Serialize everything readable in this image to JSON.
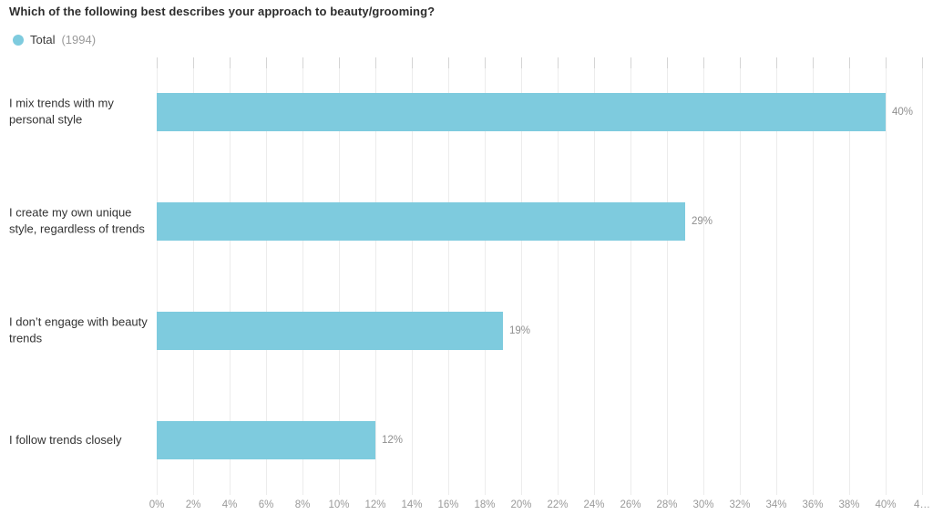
{
  "chart_data": {
    "type": "bar",
    "orientation": "horizontal",
    "title": "Which of the following best describes your approach to beauty/grooming?",
    "legend": {
      "label": "Total",
      "count": "(1994)"
    },
    "categories": [
      "I mix trends with my personal style",
      "I create my own unique style, regardless of trends",
      "I don’t engage with beauty trends",
      "I follow trends closely"
    ],
    "values": [
      40,
      29,
      19,
      12
    ],
    "value_labels": [
      "40%",
      "29%",
      "19%",
      "12%"
    ],
    "x_ticks": [
      "0%",
      "2%",
      "4%",
      "6%",
      "8%",
      "10%",
      "12%",
      "14%",
      "16%",
      "18%",
      "20%",
      "22%",
      "24%",
      "26%",
      "28%",
      "30%",
      "32%",
      "34%",
      "36%",
      "38%",
      "40%",
      "4…"
    ],
    "xlim": [
      0,
      42
    ],
    "grid": "vertical",
    "legend_position": "top-left",
    "colors": {
      "bar": "#7ECBDE",
      "title": "#2d2d2d",
      "category_label": "#333333",
      "value_label": "#8f8f8f",
      "axis_label": "#9a9a9a",
      "gridline": "#ececec"
    }
  }
}
